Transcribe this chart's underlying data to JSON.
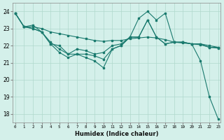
{
  "title": "",
  "xlabel": "Humidex (Indice chaleur)",
  "ylabel": "",
  "bg_color": "#d4f0ea",
  "grid_color": "#b0d8cc",
  "line_color": "#1a7a6e",
  "ylim": [
    17.5,
    24.5
  ],
  "xlim": [
    -0.3,
    23.3
  ],
  "yticks": [
    18,
    19,
    20,
    21,
    22,
    23,
    24
  ],
  "xticks": [
    0,
    1,
    2,
    3,
    4,
    5,
    6,
    7,
    8,
    9,
    10,
    11,
    12,
    13,
    14,
    15,
    16,
    17,
    18,
    19,
    20,
    21,
    22,
    23
  ],
  "line1_x": [
    0,
    1,
    2,
    3,
    4,
    5,
    6,
    7,
    8,
    9,
    10,
    11,
    12,
    13,
    14,
    15,
    16,
    17,
    18,
    19,
    20,
    21,
    22,
    23
  ],
  "line1_y": [
    23.9,
    23.1,
    23.2,
    22.8,
    22.1,
    21.6,
    21.3,
    21.5,
    21.3,
    21.1,
    20.7,
    21.8,
    22.0,
    22.5,
    23.6,
    24.0,
    23.5,
    23.9,
    22.2,
    22.2,
    22.1,
    21.1,
    19.0,
    17.7
  ],
  "line2_x": [
    0,
    1,
    2,
    3,
    4,
    5,
    6,
    7,
    8,
    9,
    10,
    11,
    12,
    13,
    14,
    15,
    16,
    17,
    18,
    19,
    20,
    21,
    22,
    23
  ],
  "line2_y": [
    23.9,
    23.1,
    23.1,
    23.0,
    22.8,
    22.7,
    22.6,
    22.5,
    22.4,
    22.3,
    22.25,
    22.3,
    22.3,
    22.4,
    22.45,
    22.5,
    22.45,
    22.35,
    22.2,
    22.15,
    22.1,
    22.05,
    21.9,
    21.85
  ],
  "line3_x": [
    0,
    1,
    2,
    3,
    4,
    5,
    6,
    7,
    8,
    9,
    10,
    11,
    12,
    13,
    14,
    15,
    16,
    17,
    18,
    19,
    20,
    21,
    22,
    23
  ],
  "line3_y": [
    23.9,
    23.1,
    23.0,
    22.8,
    22.1,
    22.0,
    21.5,
    21.8,
    21.7,
    21.5,
    21.6,
    22.0,
    22.1,
    22.5,
    22.5,
    23.5,
    22.5,
    22.1,
    22.2,
    22.2,
    22.1,
    22.1,
    21.9,
    21.9
  ],
  "line4_x": [
    0,
    1,
    2,
    3,
    4,
    5,
    6,
    7,
    8,
    9,
    10,
    11,
    12,
    13,
    14,
    15,
    16,
    17,
    18,
    19,
    20,
    21,
    22,
    23
  ],
  "line4_y": [
    23.9,
    23.1,
    23.0,
    22.8,
    22.2,
    21.8,
    21.5,
    21.5,
    21.5,
    21.4,
    21.2,
    21.8,
    22.0,
    22.5,
    22.5,
    23.5,
    22.5,
    22.1,
    22.2,
    22.2,
    22.1,
    22.1,
    22.0,
    21.9
  ]
}
